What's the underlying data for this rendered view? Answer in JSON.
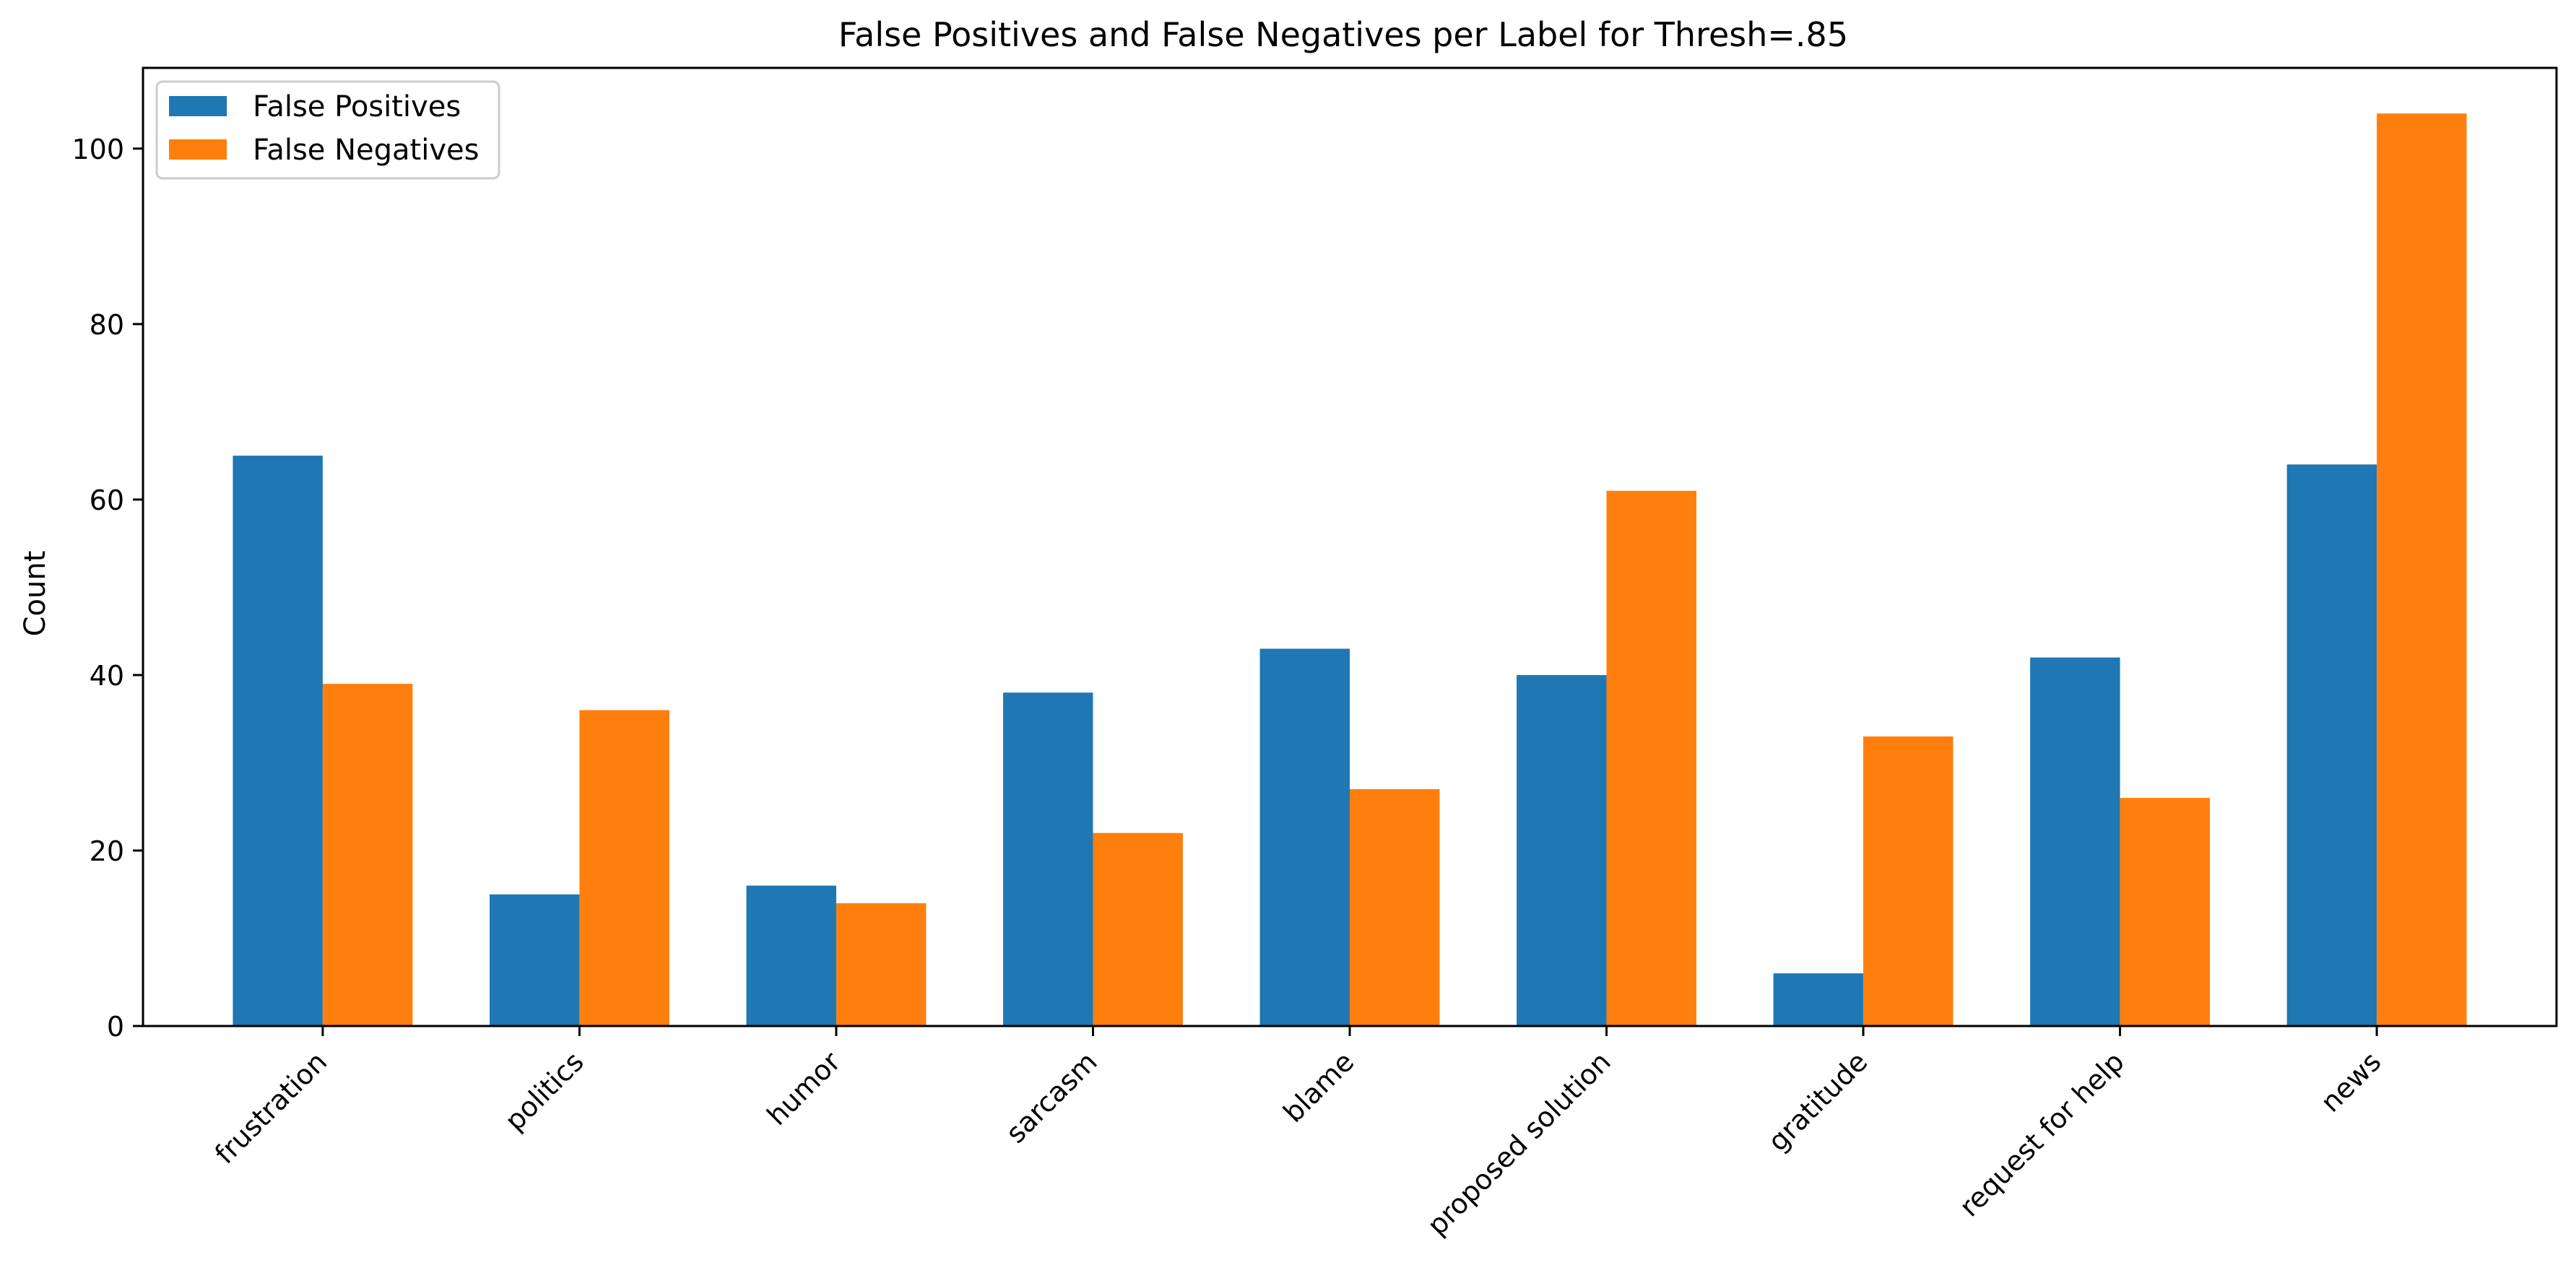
{
  "chart_data": {
    "type": "bar",
    "title": "False Positives and False Negatives per Label for Thresh=.85",
    "xlabel": "",
    "ylabel": "Count",
    "categories": [
      "frustration",
      "politics",
      "humor",
      "sarcasm",
      "blame",
      "proposed solution",
      "gratitude",
      "request for help",
      "news"
    ],
    "series": [
      {
        "name": "False Positives",
        "color": "#1f77b4",
        "values": [
          65,
          15,
          16,
          38,
          43,
          40,
          6,
          42,
          64
        ]
      },
      {
        "name": "False Negatives",
        "color": "#ff7f0e",
        "values": [
          39,
          36,
          14,
          22,
          27,
          61,
          33,
          26,
          104
        ]
      }
    ],
    "ylim": [
      0,
      109.2
    ],
    "yticks": [
      0,
      20,
      40,
      60,
      80,
      100
    ],
    "grid": false,
    "legend_position": "upper-left"
  }
}
